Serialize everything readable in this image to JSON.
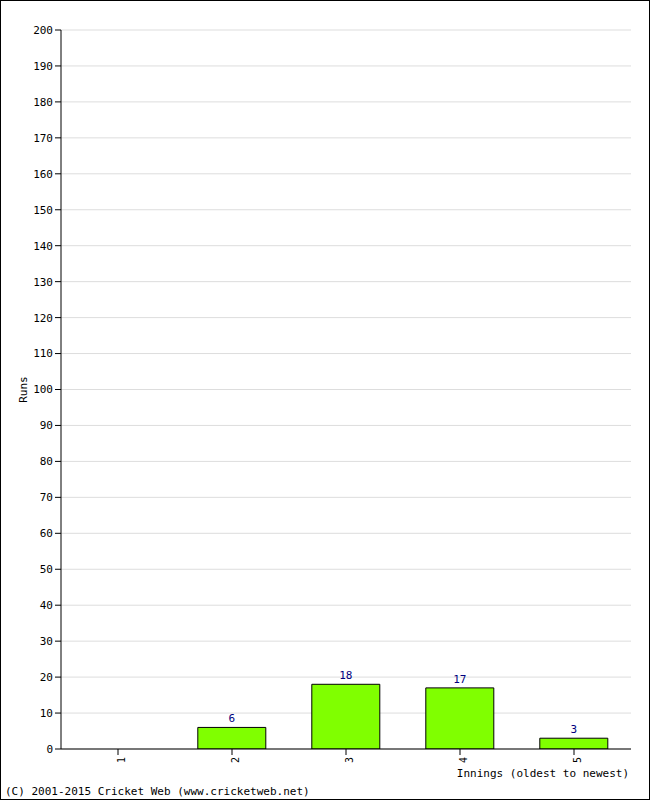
{
  "chart_data": {
    "type": "bar",
    "categories": [
      "1",
      "2",
      "3",
      "4",
      "5"
    ],
    "values": [
      0,
      6,
      18,
      17,
      3
    ],
    "color": "#80ff00",
    "ylim": [
      0,
      200
    ],
    "yticks": [
      0,
      10,
      20,
      30,
      40,
      50,
      60,
      70,
      80,
      90,
      100,
      110,
      120,
      130,
      140,
      150,
      160,
      170,
      180,
      190,
      200
    ],
    "grid": true,
    "data_labels": true,
    "x_label": "Innings (oldest to newest)",
    "y_label": "Runs",
    "annotation": "(C) 2001-2015 Cricket Web (www.cricketweb.net)"
  }
}
